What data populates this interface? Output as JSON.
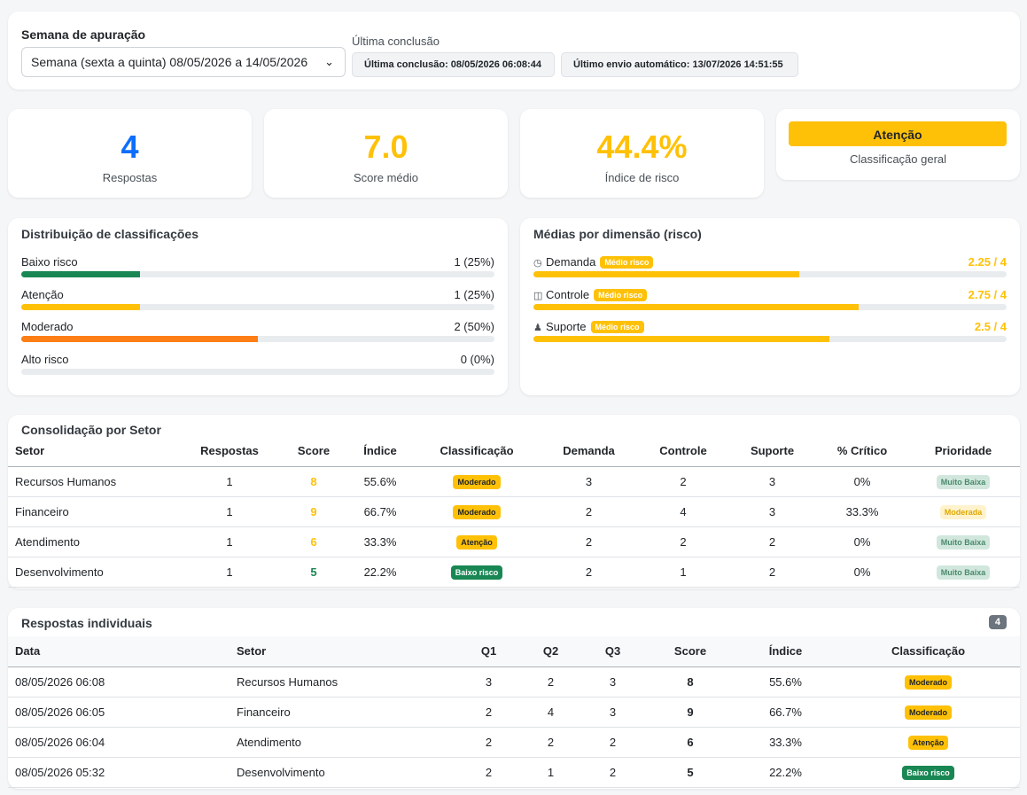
{
  "header": {
    "week_label": "Semana de apuração",
    "week_value": "Semana (sexta a quinta) 08/05/2026 a 14/05/2026",
    "last_label": "Última conclusão",
    "last_conclusion": "Última conclusão: 08/05/2026 06:08:44",
    "last_auto_send": "Último envio automático: 13/07/2026 14:51:55"
  },
  "metrics": {
    "responses": {
      "value": "4",
      "label": "Respostas",
      "color": "#0d6efd"
    },
    "score": {
      "value": "7.0",
      "label": "Score médio",
      "color": "#ffc107"
    },
    "risk_index": {
      "value": "44.4%",
      "label": "Índice de risco",
      "color": "#ffc107"
    },
    "classification": {
      "value": "Atenção",
      "label": "Classificação geral"
    }
  },
  "distribution": {
    "title": "Distribuição de classificações",
    "items": [
      {
        "name": "Baixo risco",
        "count": "1 (25%)",
        "fraction": 0.25,
        "color": "#198754"
      },
      {
        "name": "Atenção",
        "count": "1 (25%)",
        "fraction": 0.25,
        "color": "#ffc107"
      },
      {
        "name": "Moderado",
        "count": "2 (50%)",
        "fraction": 0.5,
        "color": "#fd7e14"
      },
      {
        "name": "Alto risco",
        "count": "0 (0%)",
        "fraction": 0,
        "color": "#dc3545"
      }
    ]
  },
  "dimensions": {
    "title": "Médias por dimensão (risco)",
    "items": [
      {
        "name": "Demanda",
        "badge": "Médio risco",
        "score": "2.25 / 4",
        "fraction": 0.5625,
        "icon": "gauge-icon"
      },
      {
        "name": "Controle",
        "badge": "Médio risco",
        "score": "2.75 / 4",
        "fraction": 0.6875,
        "icon": "toggle-icon"
      },
      {
        "name": "Suporte",
        "badge": "Médio risco",
        "score": "2.5 / 4",
        "fraction": 0.625,
        "icon": "people-icon"
      }
    ]
  },
  "sector_table": {
    "title": "Consolidação por Setor",
    "headers": [
      "Setor",
      "Respostas",
      "Score",
      "Índice",
      "Classificação",
      "Demanda",
      "Controle",
      "Suporte",
      "% Crítico",
      "Prioridade"
    ],
    "rows": [
      {
        "setor": "Recursos Humanos",
        "respostas": "1",
        "score": "8",
        "score_color": "#ffc107",
        "indice": "55.6%",
        "classificacao": "Moderado",
        "class_type": "mod",
        "demanda": "3",
        "controle": "2",
        "suporte": "3",
        "critico": "0%",
        "prioridade": "Muito Baixa",
        "prio_type": "mb"
      },
      {
        "setor": "Financeiro",
        "respostas": "1",
        "score": "9",
        "score_color": "#ffc107",
        "indice": "66.7%",
        "classificacao": "Moderado",
        "class_type": "mod",
        "demanda": "2",
        "controle": "4",
        "suporte": "3",
        "critico": "33.3%",
        "prioridade": "Moderada",
        "prio_type": "mod"
      },
      {
        "setor": "Atendimento",
        "respostas": "1",
        "score": "6",
        "score_color": "#ffc107",
        "indice": "33.3%",
        "classificacao": "Atenção",
        "class_type": "ate",
        "demanda": "2",
        "controle": "2",
        "suporte": "2",
        "critico": "0%",
        "prioridade": "Muito Baixa",
        "prio_type": "mb"
      },
      {
        "setor": "Desenvolvimento",
        "respostas": "1",
        "score": "5",
        "score_color": "#198754",
        "indice": "22.2%",
        "classificacao": "Baixo risco",
        "class_type": "baixo",
        "demanda": "2",
        "controle": "1",
        "suporte": "2",
        "critico": "0%",
        "prioridade": "Muito Baixa",
        "prio_type": "mb"
      }
    ]
  },
  "individual_table": {
    "title": "Respostas individuais",
    "count": "4",
    "headers": [
      "Data",
      "Setor",
      "Q1",
      "Q2",
      "Q3",
      "Score",
      "Índice",
      "Classificação"
    ],
    "rows": [
      {
        "data": "08/05/2026 06:08",
        "setor": "Recursos Humanos",
        "q1": "3",
        "q2": "2",
        "q3": "3",
        "score": "8",
        "indice": "55.6%",
        "classificacao": "Moderado",
        "class_type": "mod"
      },
      {
        "data": "08/05/2026 06:05",
        "setor": "Financeiro",
        "q1": "2",
        "q2": "4",
        "q3": "3",
        "score": "9",
        "indice": "66.7%",
        "classificacao": "Moderado",
        "class_type": "mod"
      },
      {
        "data": "08/05/2026 06:04",
        "setor": "Atendimento",
        "q1": "2",
        "q2": "2",
        "q3": "2",
        "score": "6",
        "indice": "33.3%",
        "classificacao": "Atenção",
        "class_type": "ate"
      },
      {
        "data": "08/05/2026 05:32",
        "setor": "Desenvolvimento",
        "q1": "2",
        "q2": "1",
        "q3": "2",
        "score": "5",
        "indice": "22.2%",
        "classificacao": "Baixo risco",
        "class_type": "baixo"
      }
    ]
  }
}
